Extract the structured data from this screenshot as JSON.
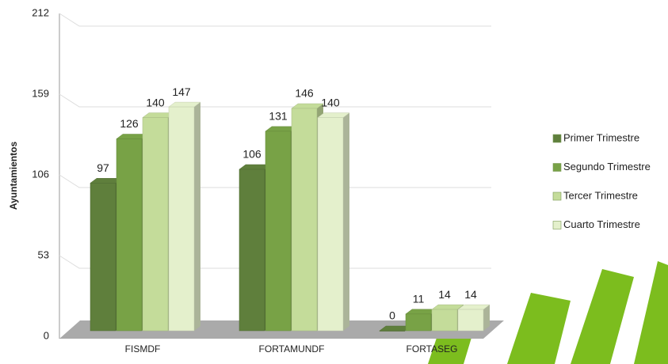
{
  "chart_data": {
    "type": "bar",
    "y_label": "Ayuntamientos",
    "categories": [
      "FISMDF",
      "FORTAMUNDF",
      "FORTASEG"
    ],
    "series": [
      {
        "name": "Primer Trimestre",
        "color": "#5f7f3c",
        "values": [
          97,
          106,
          0
        ]
      },
      {
        "name": "Segundo Trimestre",
        "color": "#78a246",
        "values": [
          126,
          131,
          11
        ]
      },
      {
        "name": "Tercer Trimestre",
        "color": "#c4dc9a",
        "values": [
          140,
          146,
          14
        ]
      },
      {
        "name": "Cuarto Trimestre",
        "color": "#e4f0cc",
        "values": [
          147,
          140,
          14
        ]
      }
    ],
    "ylim": [
      0,
      212
    ],
    "yticks": [
      0,
      53,
      106,
      159,
      212
    ],
    "grid": true,
    "legend": "right"
  }
}
